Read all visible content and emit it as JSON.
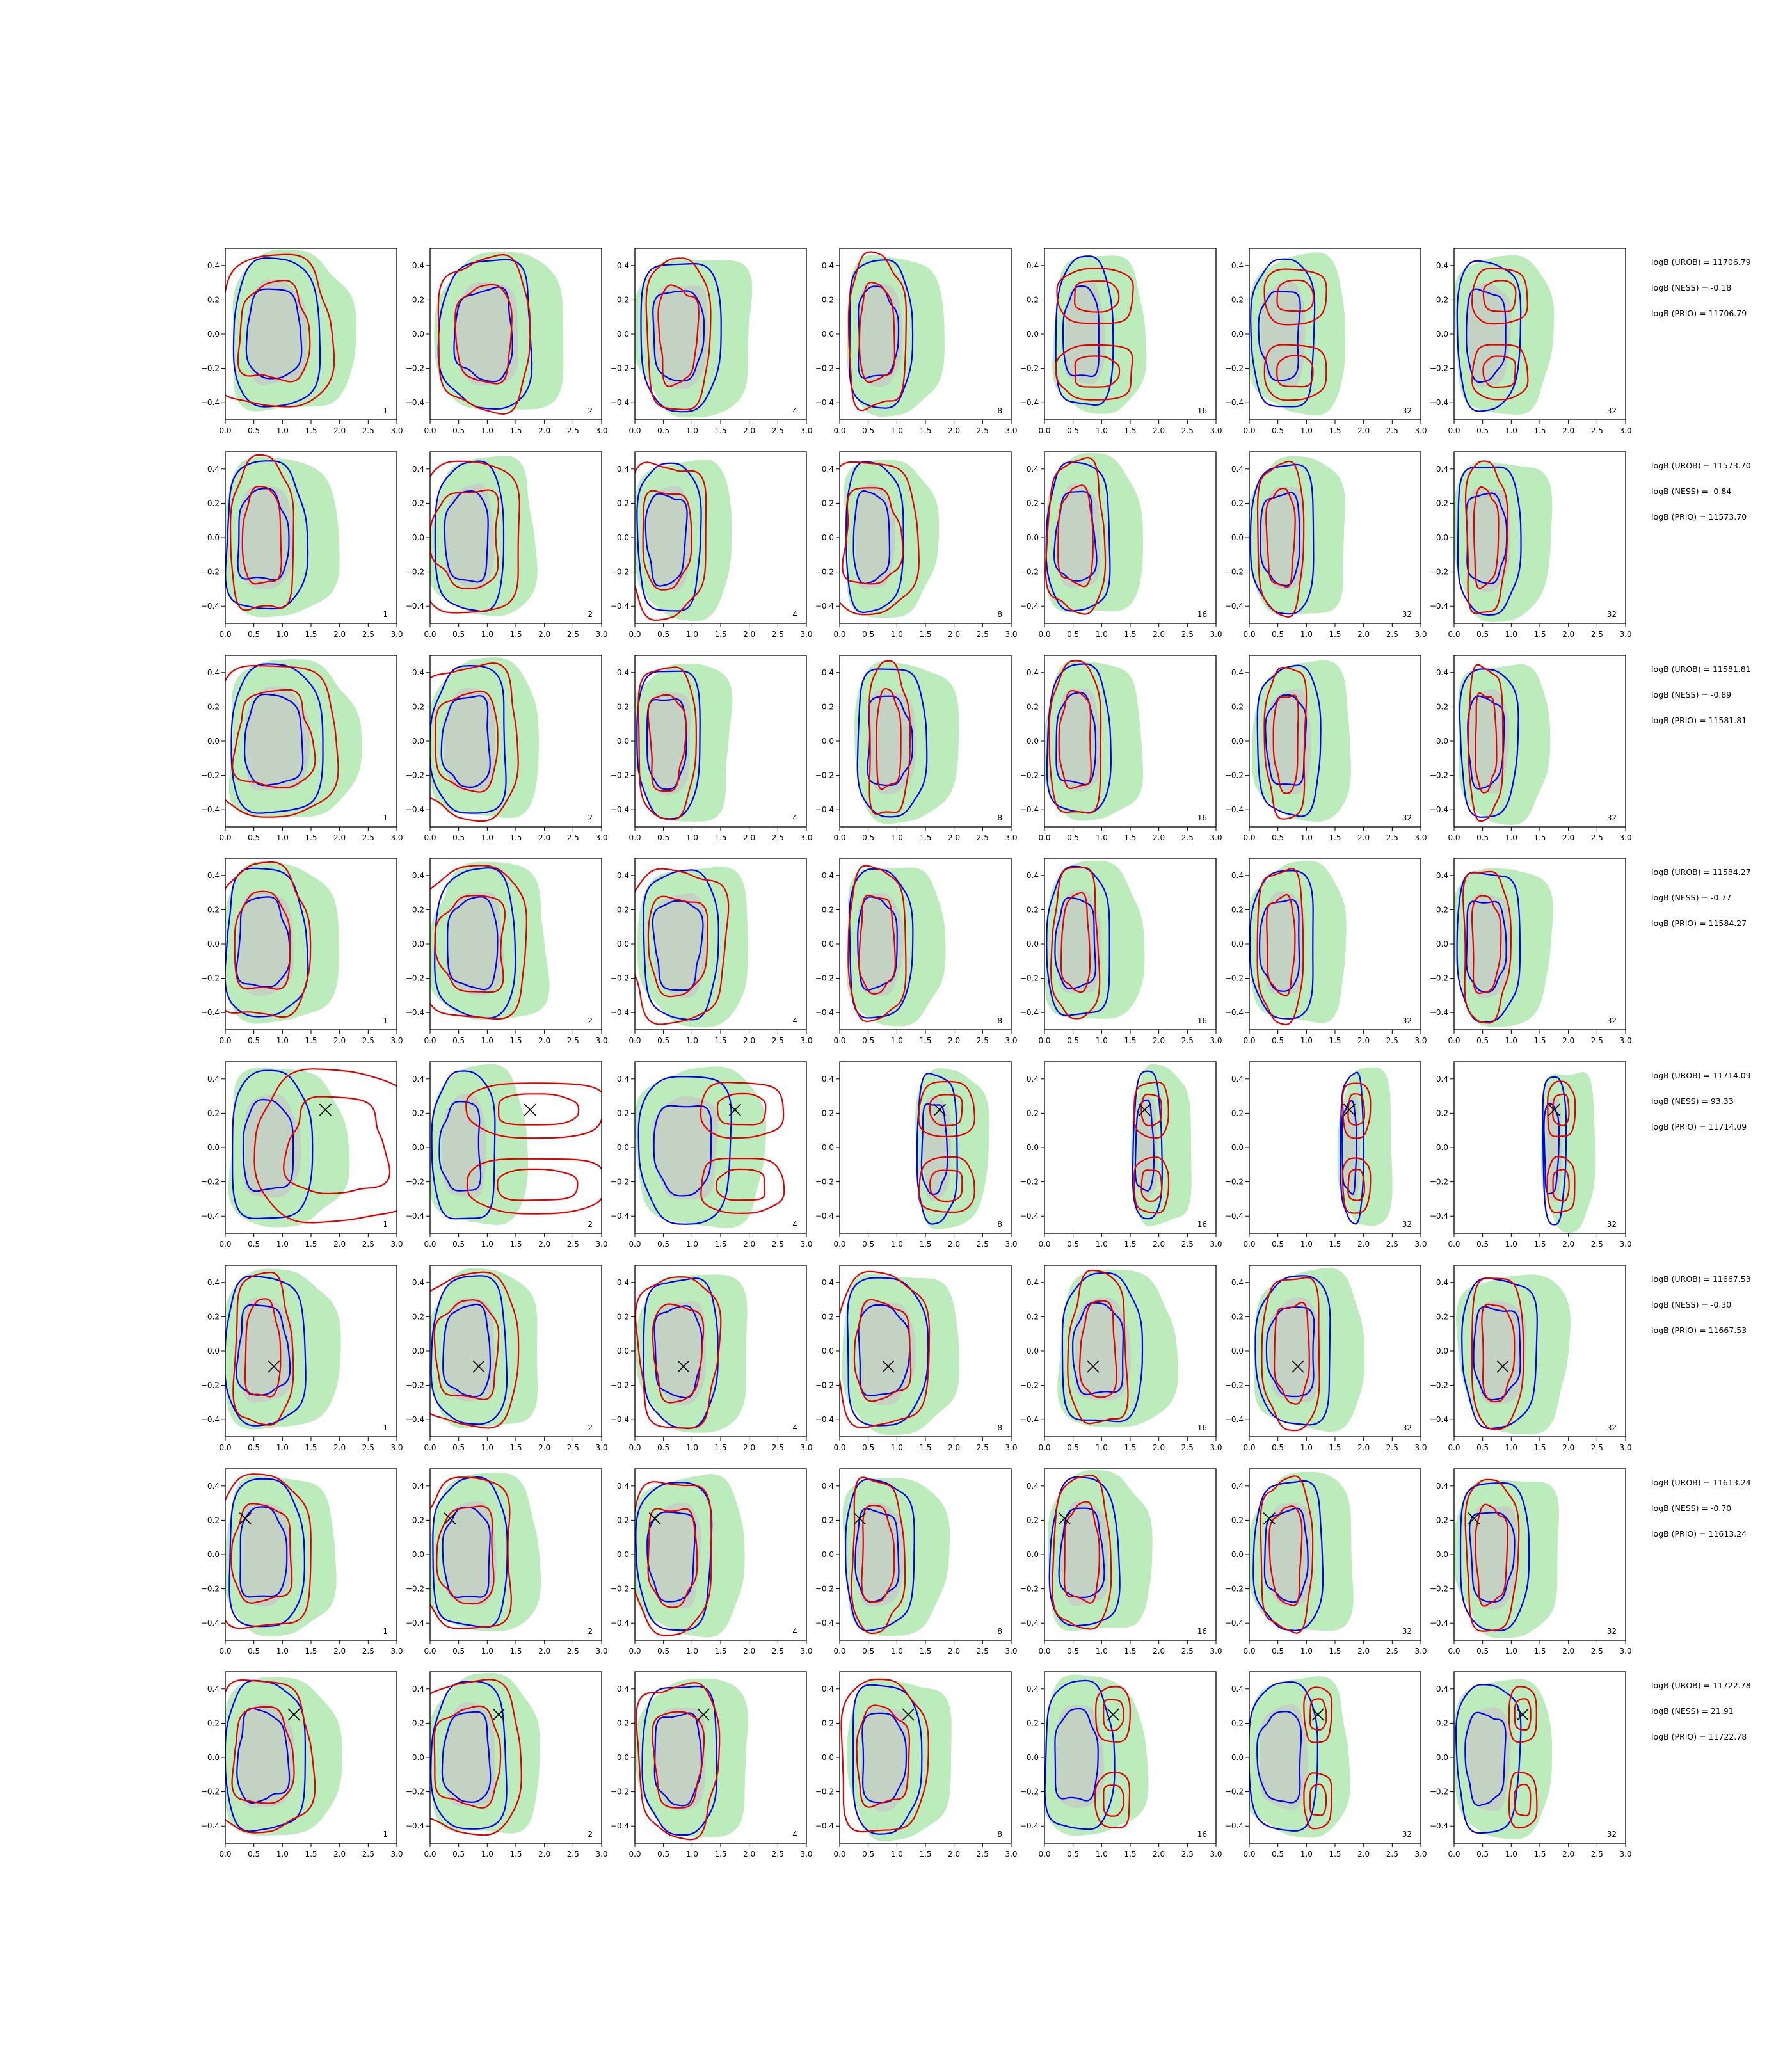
{
  "colors": {
    "green_fill": "#a6e4a6",
    "gray_fill": "#c8c8c8",
    "blue": "#0000ee",
    "red": "#e00000",
    "marker": "#000000"
  },
  "chart_data": {
    "type": "contour_grid",
    "xlim": [
      0,
      3
    ],
    "ylim": [
      -0.5,
      0.5
    ],
    "xticks": [
      "0.0",
      "0.5",
      "1.0",
      "1.5",
      "2.0",
      "2.5",
      "3.0"
    ],
    "yticks": [
      "0.4",
      "0.2",
      "0.0",
      "−0.2",
      "−0.4"
    ],
    "column_labels": [
      "1",
      "2",
      "4",
      "8",
      "16",
      "32",
      "32"
    ],
    "rows": [
      {
        "annotations": [
          "logB (UROB) = 11706.79",
          "logB (NESS) = -0.18",
          "logB (PRIO) = 11706.79"
        ],
        "marker": null,
        "blue_cx": [
          0.9,
          1.0,
          0.8,
          0.7,
          0.7,
          0.6,
          0.6
        ],
        "blue_w": [
          1.5,
          1.6,
          1.4,
          1.1,
          1.0,
          1.1,
          1.1
        ],
        "red_w": [
          2.0,
          1.6,
          1.1,
          1.0,
          1.1,
          0.9,
          0.8
        ],
        "red_split": [
          false,
          false,
          false,
          false,
          true,
          true,
          true
        ]
      },
      {
        "annotations": [
          "logB (UROB) = 11573.70",
          "logB (NESS) = -0.84",
          "logB (PRIO) = 11573.70"
        ],
        "marker": null,
        "blue_cx": [
          0.7,
          0.7,
          0.6,
          0.6,
          0.6,
          0.6,
          0.6
        ],
        "blue_w": [
          1.4,
          1.2,
          1.1,
          1.0,
          1.1,
          1.1,
          1.1
        ],
        "red_w": [
          1.1,
          1.9,
          1.4,
          1.6,
          1.0,
          0.8,
          0.7
        ],
        "red_split": [
          false,
          false,
          false,
          false,
          false,
          false,
          false
        ]
      },
      {
        "annotations": [
          "logB (UROB) = 11581.81",
          "logB (NESS) = -0.89",
          "logB (PRIO) = 11581.81"
        ],
        "marker": null,
        "blue_cx": [
          0.9,
          0.7,
          0.6,
          0.9,
          0.6,
          0.7,
          0.6
        ],
        "blue_w": [
          1.6,
          1.3,
          1.1,
          1.2,
          1.1,
          1.1,
          1.0
        ],
        "red_w": [
          2.2,
          1.8,
          1.0,
          0.7,
          0.9,
          0.7,
          0.6
        ],
        "red_split": [
          false,
          false,
          false,
          false,
          false,
          false,
          false
        ]
      },
      {
        "annotations": [
          "logB (UROB) = 11584.27",
          "logB (NESS) = -0.77",
          "logB (PRIO) = 11584.27"
        ],
        "marker": null,
        "blue_cx": [
          0.7,
          0.8,
          0.8,
          0.7,
          0.6,
          0.6,
          0.6
        ],
        "blue_w": [
          1.4,
          1.4,
          1.3,
          1.1,
          1.1,
          1.1,
          1.1
        ],
        "red_w": [
          1.6,
          1.9,
          1.7,
          1.0,
          0.8,
          0.8,
          0.8
        ],
        "red_split": [
          false,
          false,
          false,
          false,
          false,
          false,
          false
        ]
      },
      {
        "annotations": [
          "logB (UROB) = 11714.09",
          "logB (NESS) = 93.33",
          "logB (PRIO) = 11714.09"
        ],
        "marker": [
          1.75,
          0.22
        ],
        "blue_cx": [
          0.8,
          0.6,
          0.9,
          1.7,
          1.8,
          1.8,
          1.75
        ],
        "blue_w": [
          1.4,
          1.1,
          1.6,
          0.7,
          0.5,
          0.4,
          0.4
        ],
        "red_w": [
          2.8,
          2.0,
          1.2,
          0.8,
          0.5,
          0.4,
          0.4
        ],
        "red_split": [
          false,
          true,
          true,
          true,
          true,
          true,
          true
        ]
      },
      {
        "annotations": [
          "logB (UROB) = 11667.53",
          "logB (NESS) = -0.30",
          "logB (PRIO) = 11667.53"
        ],
        "marker": [
          0.85,
          -0.09
        ],
        "blue_cx": [
          0.7,
          0.7,
          0.8,
          0.8,
          1.0,
          0.8,
          0.8
        ],
        "blue_w": [
          1.4,
          1.3,
          1.3,
          1.4,
          1.4,
          1.3,
          1.3
        ],
        "red_w": [
          1.0,
          1.8,
          1.4,
          1.6,
          1.0,
          1.0,
          0.9
        ],
        "red_split": [
          false,
          false,
          false,
          false,
          false,
          false,
          false
        ]
      },
      {
        "annotations": [
          "logB (UROB) = 11613.24",
          "logB (NESS) = -0.70",
          "logB (PRIO) = 11613.24"
        ],
        "marker": [
          0.35,
          0.21
        ],
        "blue_cx": [
          0.7,
          0.7,
          0.7,
          0.7,
          0.7,
          0.7,
          0.7
        ],
        "blue_w": [
          1.3,
          1.3,
          1.3,
          1.2,
          1.2,
          1.2,
          1.2
        ],
        "red_w": [
          1.7,
          1.6,
          1.4,
          0.9,
          1.0,
          0.9,
          0.9
        ],
        "red_split": [
          false,
          false,
          false,
          false,
          false,
          false,
          false
        ]
      },
      {
        "annotations": [
          "logB (UROB) = 11722.78",
          "logB (NESS) = 21.91",
          "logB (PRIO) = 11722.78"
        ],
        "marker": [
          1.2,
          0.25
        ],
        "blue_cx": [
          0.7,
          0.7,
          0.8,
          0.8,
          0.6,
          0.6,
          0.6
        ],
        "blue_w": [
          1.4,
          1.3,
          1.3,
          1.2,
          1.2,
          1.2,
          1.1
        ],
        "red_w": [
          1.7,
          1.9,
          1.4,
          1.5,
          0.5,
          0.4,
          0.4
        ],
        "red_split": [
          false,
          false,
          false,
          false,
          true,
          true,
          true
        ]
      }
    ]
  }
}
